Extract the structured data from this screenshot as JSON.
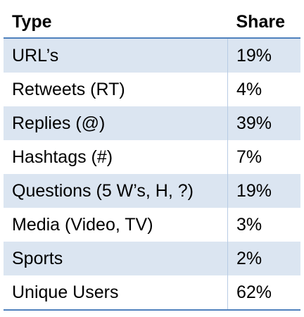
{
  "table": {
    "headers": [
      "Type",
      "Share"
    ],
    "rows": [
      {
        "type": "URL’s",
        "share": "19%"
      },
      {
        "type": "Retweets (RT)",
        "share": "4%"
      },
      {
        "type": "Replies (@)",
        "share": "39%"
      },
      {
        "type": "Hashtags (#)",
        "share": "7%"
      },
      {
        "type": "Questions (5 W’s, H, ?)",
        "share": "19%"
      },
      {
        "type": "Media (Video, TV)",
        "share": "3%"
      },
      {
        "type": "Sports",
        "share": "2%"
      },
      {
        "type": "Unique Users",
        "share": "62%"
      }
    ]
  },
  "colors": {
    "header_rule": "#4f81bd",
    "row_shade": "#dbe5f1",
    "column_divider": "#b8cce4"
  }
}
